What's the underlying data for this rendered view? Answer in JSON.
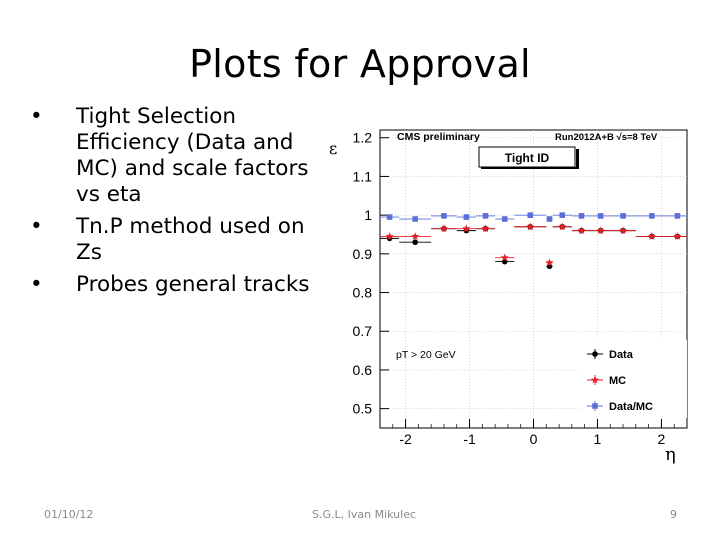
{
  "slide": {
    "title": "Plots for Approval",
    "bullets": [
      "Tight Selection Efficiency (Data and MC) and scale factors vs eta",
      "Tn.P method used on Zs",
      "Probes general tracks"
    ],
    "footer_date": "01/10/12",
    "footer_author": "S.G.L, Ivan Mikulec",
    "page_number": "9"
  },
  "chart_data": {
    "type": "scatter",
    "header_left": "CMS preliminary",
    "header_right": "Run2012A+B  √s=8 TeV",
    "box_label": "Tight ID",
    "cut_label": "pT > 20 GeV",
    "xlabel": "η",
    "ylabel": "ε",
    "xlim": [
      -2.4,
      2.4
    ],
    "ylim": [
      0.45,
      1.22
    ],
    "xticks": [
      -2,
      -1,
      0,
      1,
      2
    ],
    "yticks": [
      0.5,
      0.6,
      0.7,
      0.8,
      0.9,
      1,
      1.1,
      1.2
    ],
    "x_bins": [
      -2.4,
      -2.1,
      -1.6,
      -1.2,
      -0.9,
      -0.6,
      -0.3,
      0.2,
      0.3,
      0.6,
      0.9,
      1.2,
      1.6,
      2.1,
      2.4
    ],
    "legend_position": "bottom-right",
    "series": [
      {
        "name": "Data",
        "color": "#000000",
        "marker": "circle",
        "values": [
          0.94,
          0.93,
          0.965,
          0.96,
          0.965,
          0.88,
          0.97,
          0.868,
          0.97,
          0.96,
          0.96,
          0.96,
          0.945,
          0.945
        ]
      },
      {
        "name": "MC",
        "color": "#e8202a",
        "marker": "star",
        "values": [
          0.945,
          0.945,
          0.965,
          0.965,
          0.965,
          0.89,
          0.97,
          0.877,
          0.97,
          0.96,
          0.96,
          0.96,
          0.945,
          0.945
        ]
      },
      {
        "name": "Data/MC",
        "color": "#5b6fd9",
        "marker": "square",
        "values": [
          0.995,
          0.99,
          0.998,
          0.995,
          0.998,
          0.99,
          1.0,
          0.99,
          1.0,
          0.998,
          0.998,
          0.998,
          0.998,
          0.998
        ]
      }
    ]
  }
}
